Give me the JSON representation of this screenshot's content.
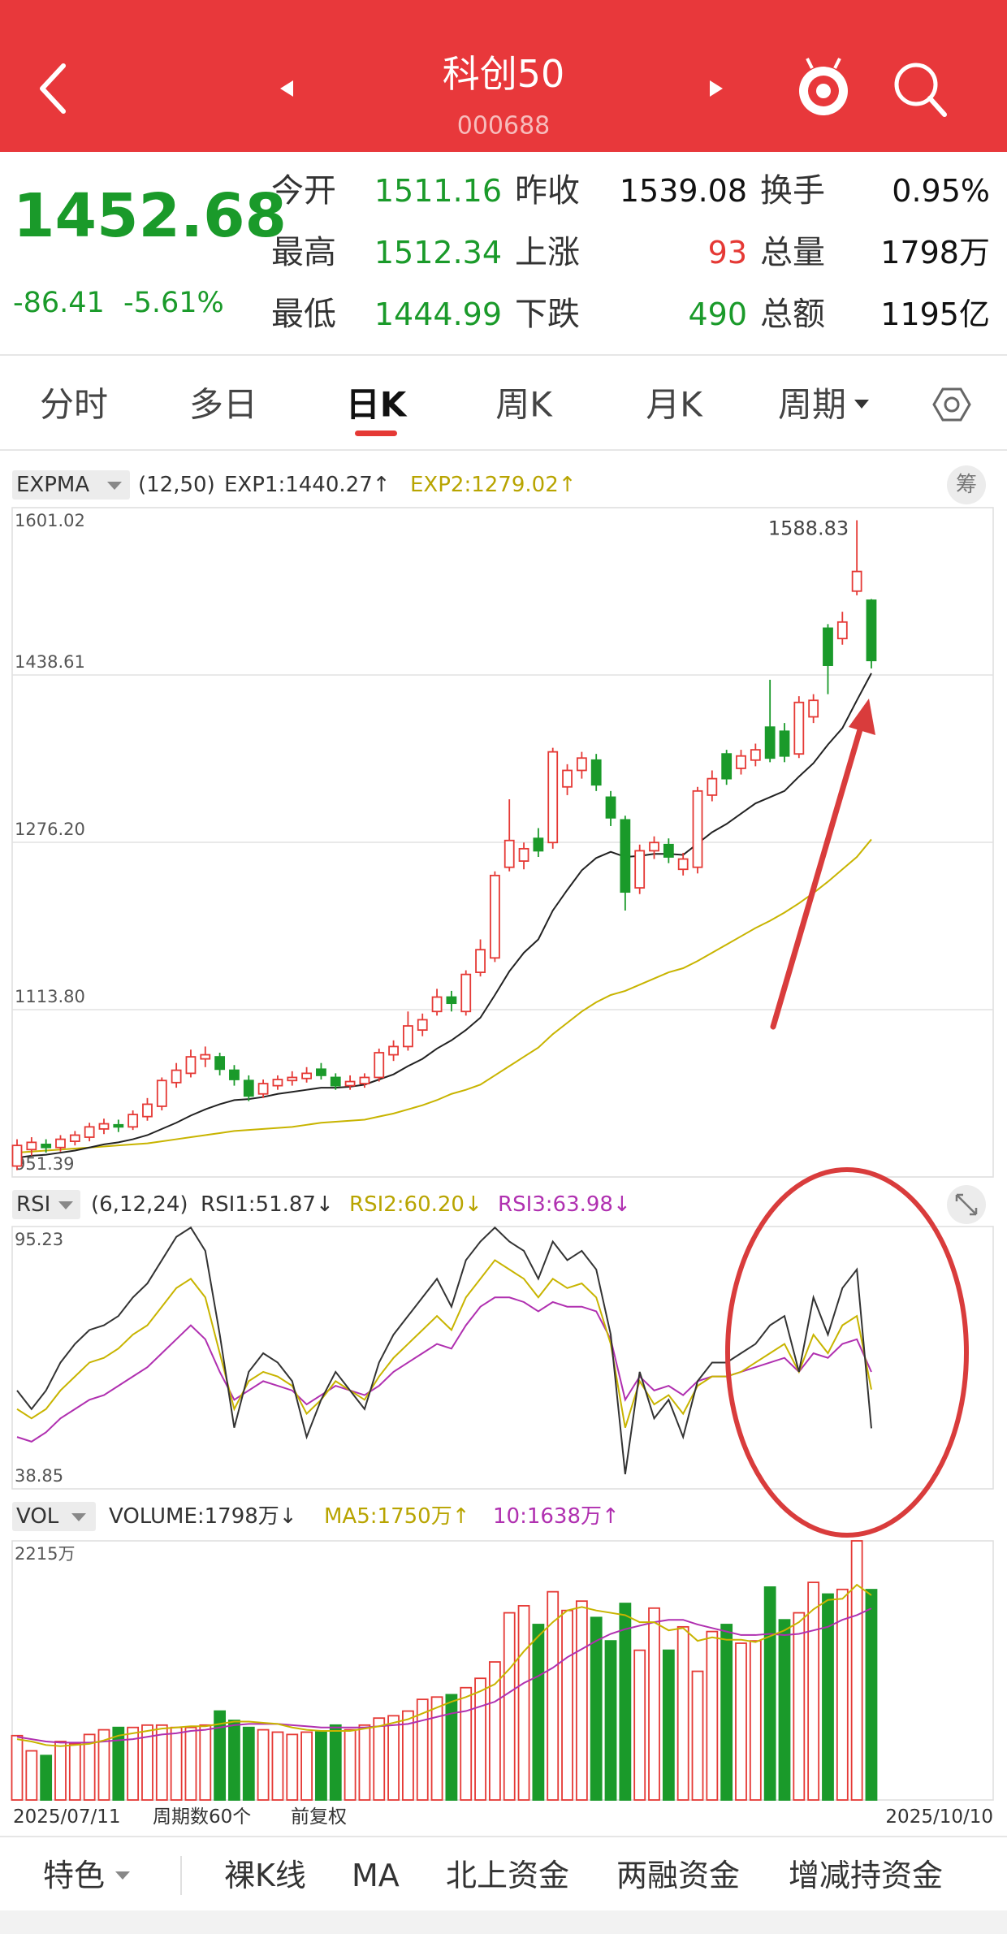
{
  "header": {
    "title": "科创50",
    "code": "000688"
  },
  "quote": {
    "price": "1452.68",
    "change": "-86.41",
    "change_pct": "-5.61%",
    "rows": [
      [
        {
          "label": "今开",
          "value": "1511.16"
        },
        {
          "label": "昨收",
          "value": "1539.08"
        },
        {
          "label": "换手",
          "value": "0.95%"
        }
      ],
      [
        {
          "label": "最高",
          "value": "1512.34"
        },
        {
          "label": "上涨",
          "value": "93"
        },
        {
          "label": "总量",
          "value": "1798万"
        }
      ],
      [
        {
          "label": "最低",
          "value": "1444.99"
        },
        {
          "label": "下跌",
          "value": "490"
        },
        {
          "label": "总额",
          "value": "1195亿"
        }
      ]
    ]
  },
  "tabs": {
    "items": [
      "分时",
      "多日",
      "日K",
      "周K",
      "月K",
      "周期"
    ]
  },
  "expma": {
    "name": "EXPMA",
    "params": "(12,50)",
    "exp1_text": "EXP1:1440.27↑",
    "exp2_text": "EXP2:1279.02↑",
    "side_button": "筹",
    "ylim": [
      951.39,
      1601.02
    ],
    "yticks": [
      1601.02,
      1438.61,
      {
        "value": 1276.2,
        "label": "1276.20"
      },
      {
        "value": 1113.8,
        "label": "1113.80"
      },
      951.39
    ],
    "candles": [
      [
        962,
        982,
        988,
        958
      ],
      [
        978,
        985,
        990,
        972
      ],
      [
        983,
        980,
        988,
        975
      ],
      [
        980,
        988,
        992,
        976
      ],
      [
        986,
        992,
        996,
        982
      ],
      [
        990,
        1000,
        1004,
        986
      ],
      [
        998,
        1003,
        1008,
        993
      ],
      [
        1002,
        1000,
        1007,
        995
      ],
      [
        1000,
        1012,
        1016,
        997
      ],
      [
        1010,
        1022,
        1028,
        1006
      ],
      [
        1020,
        1045,
        1048,
        1016
      ],
      [
        1043,
        1055,
        1062,
        1038
      ],
      [
        1052,
        1068,
        1075,
        1048
      ],
      [
        1066,
        1070,
        1078,
        1058
      ],
      [
        1068,
        1056,
        1072,
        1050
      ],
      [
        1055,
        1046,
        1060,
        1040
      ],
      [
        1045,
        1030,
        1050,
        1025
      ],
      [
        1032,
        1042,
        1046,
        1028
      ],
      [
        1040,
        1046,
        1050,
        1036
      ],
      [
        1045,
        1048,
        1054,
        1040
      ],
      [
        1047,
        1052,
        1058,
        1043
      ],
      [
        1056,
        1050,
        1062,
        1046
      ],
      [
        1048,
        1040,
        1052,
        1036
      ],
      [
        1040,
        1044,
        1050,
        1036
      ],
      [
        1042,
        1048,
        1052,
        1038
      ],
      [
        1048,
        1072,
        1076,
        1044
      ],
      [
        1070,
        1078,
        1084,
        1064
      ],
      [
        1078,
        1098,
        1112,
        1074
      ],
      [
        1094,
        1104,
        1110,
        1088
      ],
      [
        1112,
        1126,
        1134,
        1108
      ],
      [
        1126,
        1120,
        1132,
        1112
      ],
      [
        1112,
        1148,
        1152,
        1108
      ],
      [
        1150,
        1172,
        1182,
        1146
      ],
      [
        1164,
        1244,
        1248,
        1160
      ],
      [
        1252,
        1278,
        1318,
        1248
      ],
      [
        1258,
        1270,
        1276,
        1250
      ],
      [
        1280,
        1268,
        1290,
        1262
      ],
      [
        1276,
        1364,
        1368,
        1270
      ],
      [
        1330,
        1346,
        1352,
        1322
      ],
      [
        1346,
        1358,
        1364,
        1338
      ],
      [
        1356,
        1332,
        1362,
        1326
      ],
      [
        1320,
        1300,
        1326,
        1292
      ],
      [
        1298,
        1228,
        1302,
        1210
      ],
      [
        1232,
        1268,
        1274,
        1226
      ],
      [
        1268,
        1276,
        1282,
        1260
      ],
      [
        1274,
        1262,
        1280,
        1256
      ],
      [
        1250,
        1260,
        1266,
        1244
      ],
      [
        1252,
        1326,
        1330,
        1246
      ],
      [
        1322,
        1338,
        1346,
        1316
      ],
      [
        1362,
        1338,
        1366,
        1332
      ],
      [
        1348,
        1360,
        1366,
        1342
      ],
      [
        1356,
        1366,
        1372,
        1350
      ],
      [
        1388,
        1358,
        1434,
        1354
      ],
      [
        1384,
        1360,
        1392,
        1354
      ],
      [
        1362,
        1412,
        1418,
        1358
      ],
      [
        1398,
        1414,
        1420,
        1392
      ],
      [
        1484,
        1448,
        1488,
        1420
      ],
      [
        1474,
        1490,
        1500,
        1468
      ],
      [
        1520,
        1539.08,
        1588.83,
        1516
      ],
      [
        1511.16,
        1452.68,
        1512.34,
        1444.99
      ]
    ],
    "exp1": [
      970,
      972,
      973,
      975,
      977,
      980,
      983,
      985,
      988,
      992,
      998,
      1004,
      1011,
      1017,
      1022,
      1026,
      1027,
      1029,
      1032,
      1034,
      1036,
      1038,
      1038,
      1039,
      1041,
      1046,
      1051,
      1059,
      1066,
      1076,
      1084,
      1094,
      1106,
      1128,
      1151,
      1169,
      1182,
      1210,
      1230,
      1249,
      1261,
      1267,
      1262,
      1263,
      1265,
      1265,
      1264,
      1275,
      1286,
      1294,
      1304,
      1314,
      1320,
      1326,
      1340,
      1353,
      1371,
      1387,
      1414,
      1440.27
    ],
    "exp2": [
      975,
      976,
      977,
      978,
      979,
      980,
      981,
      982,
      983,
      984,
      986,
      988,
      990,
      992,
      994,
      996,
      997,
      998,
      999,
      1000,
      1002,
      1004,
      1005,
      1006,
      1007,
      1010,
      1013,
      1017,
      1021,
      1026,
      1032,
      1036,
      1041,
      1050,
      1059,
      1068,
      1077,
      1090,
      1101,
      1112,
      1121,
      1128,
      1132,
      1138,
      1144,
      1150,
      1154,
      1161,
      1169,
      1177,
      1185,
      1193,
      1200,
      1208,
      1217,
      1227,
      1238,
      1250,
      1262,
      1279.02
    ]
  },
  "rsi": {
    "name": "RSI",
    "params": "(6,12,24)",
    "rsi1_text": "RSI1:51.87↓",
    "rsi2_text": "RSI2:60.20↓",
    "rsi3_text": "RSI3:63.98↓",
    "ylim": [
      38.85,
      95.23
    ],
    "yticks": [
      95.23,
      38.85
    ],
    "rsi1": [
      60,
      56,
      60,
      66,
      70,
      73,
      74,
      76,
      80,
      83,
      88,
      93,
      95,
      90,
      72,
      52,
      64,
      68,
      66,
      62,
      50,
      58,
      64,
      60,
      56,
      66,
      72,
      76,
      80,
      84,
      78,
      88,
      92,
      95,
      92,
      90,
      84,
      92,
      88,
      90,
      86,
      72,
      42,
      64,
      54,
      58,
      50,
      62,
      66,
      66,
      68,
      70,
      74,
      76,
      64,
      80,
      72,
      82,
      86,
      51.87
    ],
    "rsi2": [
      56,
      54,
      56,
      60,
      63,
      66,
      67,
      69,
      72,
      74,
      78,
      82,
      84,
      80,
      68,
      56,
      62,
      64,
      63,
      61,
      55,
      58,
      62,
      60,
      58,
      63,
      67,
      70,
      73,
      76,
      73,
      80,
      84,
      88,
      86,
      84,
      80,
      84,
      82,
      83,
      80,
      70,
      52,
      62,
      57,
      59,
      55,
      61,
      63,
      63,
      64,
      66,
      68,
      70,
      64,
      72,
      68,
      74,
      76,
      60.2
    ],
    "rsi3": [
      50,
      49,
      51,
      54,
      56,
      58,
      59,
      61,
      63,
      65,
      68,
      71,
      74,
      71,
      64,
      58,
      60,
      62,
      61,
      60,
      57,
      59,
      61,
      60,
      59,
      61,
      64,
      66,
      68,
      70,
      69,
      74,
      78,
      80,
      80,
      79,
      77,
      79,
      78,
      78,
      77,
      71,
      58,
      63,
      60,
      61,
      59,
      62,
      63,
      63,
      64,
      65,
      66,
      67,
      64,
      68,
      67,
      70,
      71,
      63.98
    ]
  },
  "vol": {
    "name": "VOL",
    "volume_text": "VOLUME:1798万↓",
    "ma5_text": "MA5:1750万↑",
    "ma10_text": "10:1638万↑",
    "ylim": [
      0,
      2215
    ],
    "yticks": [
      {
        "value": 2215,
        "label": "2215万"
      }
    ],
    "values": [
      550,
      420,
      380,
      500,
      480,
      560,
      600,
      620,
      620,
      640,
      640,
      620,
      620,
      640,
      760,
      680,
      620,
      600,
      580,
      560,
      580,
      580,
      640,
      600,
      640,
      700,
      720,
      760,
      860,
      880,
      900,
      960,
      1040,
      1180,
      1600,
      1660,
      1500,
      1780,
      1620,
      1700,
      1560,
      1360,
      1680,
      1280,
      1640,
      1280,
      1480,
      1100,
      1440,
      1500,
      1340,
      1360,
      1820,
      1540,
      1600,
      1860,
      1760,
      1800,
      2215,
      1798
    ],
    "ma5": [
      520,
      500,
      470,
      460,
      470,
      480,
      510,
      550,
      570,
      590,
      610,
      620,
      630,
      630,
      650,
      670,
      670,
      660,
      650,
      620,
      600,
      590,
      590,
      590,
      610,
      630,
      660,
      690,
      740,
      790,
      840,
      880,
      930,
      990,
      1120,
      1270,
      1400,
      1520,
      1620,
      1650,
      1620,
      1600,
      1580,
      1520,
      1520,
      1450,
      1470,
      1360,
      1390,
      1370,
      1370,
      1350,
      1400,
      1450,
      1520,
      1630,
      1710,
      1720,
      1840,
      1750
    ],
    "ma10": [
      540,
      520,
      500,
      490,
      490,
      490,
      500,
      510,
      520,
      540,
      560,
      570,
      590,
      600,
      620,
      640,
      650,
      650,
      650,
      640,
      630,
      620,
      620,
      620,
      620,
      630,
      640,
      650,
      680,
      710,
      740,
      760,
      800,
      840,
      920,
      1000,
      1060,
      1130,
      1220,
      1290,
      1360,
      1420,
      1460,
      1490,
      1520,
      1540,
      1540,
      1500,
      1470,
      1440,
      1410,
      1410,
      1420,
      1410,
      1420,
      1450,
      1480,
      1540,
      1580,
      1638
    ]
  },
  "footer_axis": {
    "start_date": "2025/07/11",
    "period_count": "周期数60个",
    "adjust": "前复权",
    "end_date": "2025/10/10"
  },
  "bottom_tabs": {
    "items": [
      "特色",
      "裸K线",
      "MA",
      "北上资金",
      "两融资金",
      "增减持资金"
    ]
  }
}
